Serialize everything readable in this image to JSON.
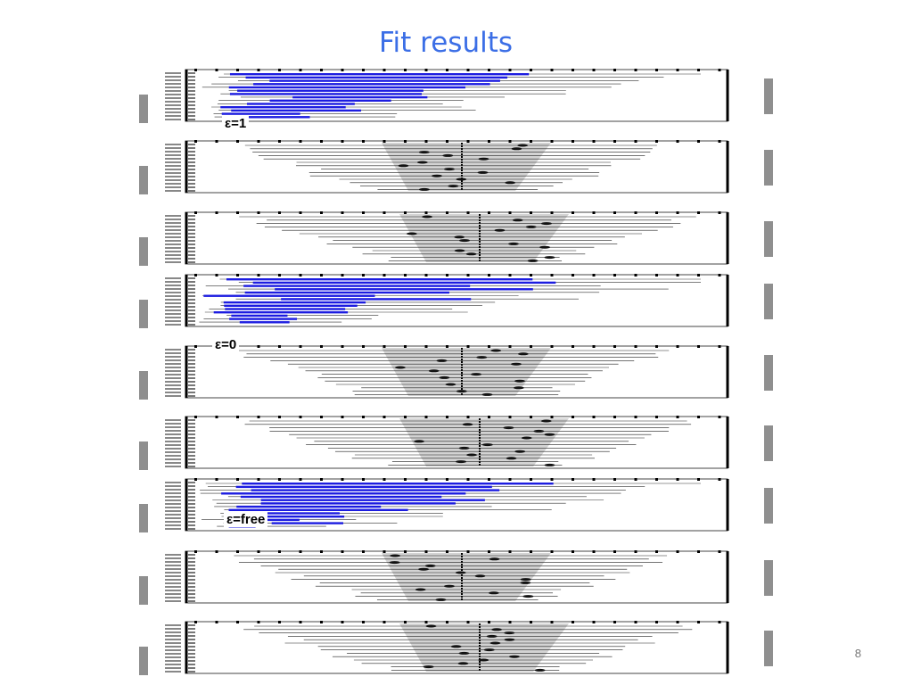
{
  "slide": {
    "title": "Fit results",
    "page_number": "8"
  },
  "annotations": {
    "eps1": "ε=1",
    "eps0": "ε=0",
    "epsfree": "ε=free"
  },
  "panels": [
    {
      "style": "blue"
    },
    {
      "style": "gray"
    },
    {
      "style": "gray"
    },
    {
      "style": "blue"
    },
    {
      "style": "gray"
    },
    {
      "style": "gray"
    },
    {
      "style": "blue"
    },
    {
      "style": "gray"
    },
    {
      "style": "gray"
    }
  ],
  "colors": {
    "title": "#3b6ee6",
    "blue_bar": "#1c1ce0",
    "gray_band": "#c8c8c8",
    "line": "#000000"
  }
}
